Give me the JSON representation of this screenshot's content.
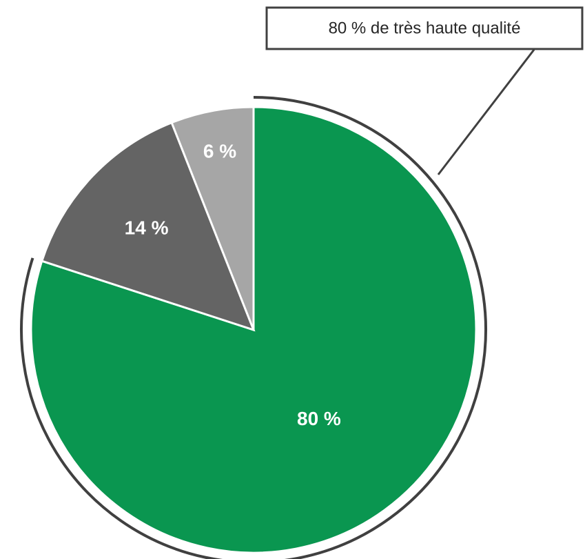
{
  "chart_data": {
    "type": "pie",
    "values": [
      80,
      14,
      6
    ],
    "value_labels": [
      "80 %",
      "14 %",
      "6 %"
    ],
    "colors": [
      "#0a9650",
      "#646464",
      "#a6a6a6"
    ],
    "annotation": "80 % de très haute qualité"
  }
}
